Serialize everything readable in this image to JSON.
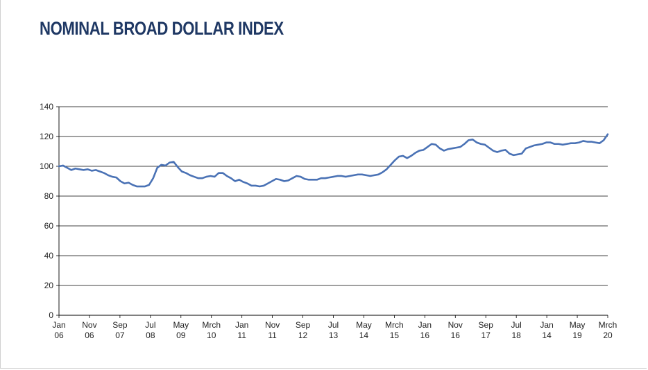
{
  "chart_data": {
    "type": "line",
    "title": "NOMINAL BROAD DOLLAR INDEX",
    "xlabel": "",
    "ylabel": "",
    "ylim": [
      0,
      140
    ],
    "yticks": [
      0,
      20,
      40,
      60,
      80,
      100,
      120,
      140
    ],
    "grid": true,
    "x_tick_labels": [
      {
        "month": "Jan",
        "year": "06"
      },
      {
        "month": "Nov",
        "year": "06"
      },
      {
        "month": "Sep",
        "year": "07"
      },
      {
        "month": "Jul",
        "year": "08"
      },
      {
        "month": "May",
        "year": "09"
      },
      {
        "month": "Mrch",
        "year": "10"
      },
      {
        "month": "Jan",
        "year": "11"
      },
      {
        "month": "Nov",
        "year": "11"
      },
      {
        "month": "Sep",
        "year": "12"
      },
      {
        "month": "Jul",
        "year": "13"
      },
      {
        "month": "May",
        "year": "14"
      },
      {
        "month": "Mrch",
        "year": "15"
      },
      {
        "month": "Jan",
        "year": "16"
      },
      {
        "month": "Nov",
        "year": "16"
      },
      {
        "month": "Sep",
        "year": "17"
      },
      {
        "month": "Jul",
        "year": "18"
      },
      {
        "month": "Jan",
        "year": "14"
      },
      {
        "month": "May",
        "year": "19"
      },
      {
        "month": "Mrch",
        "year": "20"
      }
    ],
    "series": [
      {
        "color": "#4a72b5",
        "values": [
          100,
          100.5,
          99,
          97.5,
          98.5,
          98,
          97.5,
          98,
          97,
          97.5,
          96.5,
          95.5,
          94,
          93,
          92.5,
          90,
          88.5,
          89,
          87.5,
          86.5,
          86.5,
          86.5,
          87.5,
          92,
          99,
          101,
          100.5,
          102.5,
          103,
          99.5,
          96.5,
          95.5,
          94,
          93,
          92,
          92,
          93,
          93.5,
          93,
          95.5,
          95.5,
          93.5,
          92,
          90,
          91,
          89.5,
          88.5,
          87,
          87,
          86.5,
          87,
          88.5,
          90,
          91.5,
          91,
          90,
          90.5,
          92,
          93.5,
          93,
          91.5,
          91,
          91,
          91,
          92,
          92,
          92.5,
          93,
          93.5,
          93.5,
          93,
          93.5,
          94,
          94.5,
          94.5,
          94,
          93.5,
          94,
          94.5,
          96,
          98,
          101,
          104,
          106.5,
          107,
          105.5,
          107,
          109,
          110.5,
          111,
          113,
          115,
          114.5,
          112,
          110.5,
          111.5,
          112,
          112.5,
          113,
          115,
          117.5,
          118,
          116,
          115,
          114.5,
          112.5,
          110.5,
          109.5,
          110.5,
          111,
          108.5,
          107.5,
          108,
          108.5,
          112,
          113,
          114,
          114.5,
          115,
          116,
          116,
          115,
          115,
          114.5,
          115,
          115.5,
          115.5,
          116,
          117,
          116.5,
          116.5,
          116,
          115.5,
          117.5,
          121.5
        ]
      }
    ]
  }
}
